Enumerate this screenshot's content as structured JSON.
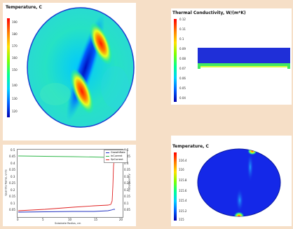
{
  "panels": {
    "temperature_top": {
      "title": "Temperature, C",
      "ticks": [
        "190",
        "180",
        "170",
        "160",
        "150",
        "140",
        "130",
        "120"
      ]
    },
    "thermal_conductivity": {
      "title": "Thermal Conductivity, W/(m*K)",
      "ticks": [
        "0.12",
        "0.11",
        "0.1",
        "0.09",
        "0.08",
        "0.07",
        "0.06",
        "0.05",
        "0.04"
      ]
    },
    "line_chart": {
      "xlabel": "Substrate Radius, cm",
      "ylabel_left": "Quantity Name, units",
      "ylabel_right": "Ratio/Quantity",
      "x_ticks": [
        "0",
        "5",
        "10",
        "15",
        "20"
      ],
      "y_left_ticks": [
        "0.5",
        "0.45",
        "0.4",
        "0.35",
        "0.3",
        "0.25",
        "0.2",
        "0.15",
        "0.1",
        "0.05"
      ],
      "y_right_ticks": [
        "0.5",
        "0.45",
        "0.4",
        "0.35",
        "0.3",
        "0.25",
        "0.2",
        "0.15",
        "0.1",
        "0.05"
      ],
      "legend": [
        "GrowthRate",
        "InCurrent",
        "SpCurrent"
      ]
    },
    "temperature_bottom": {
      "title": "Temperature, C",
      "ticks": [
        "116.4",
        "116",
        "115.8",
        "115.6",
        "115.4",
        "115.2",
        "115"
      ]
    }
  },
  "colors": {
    "background": "#f6dfc7",
    "series_green": "#2fb84a",
    "series_red": "#e02020",
    "series_blue": "#2030c0"
  }
}
